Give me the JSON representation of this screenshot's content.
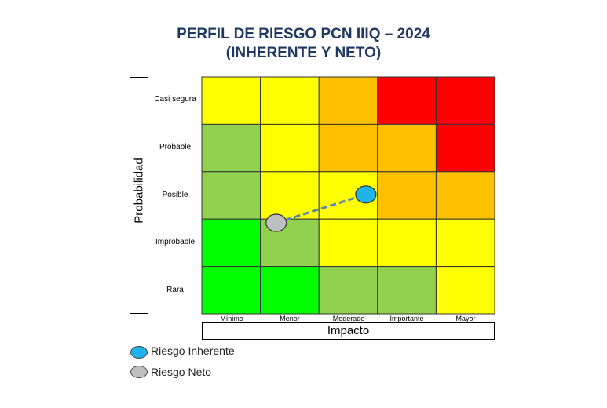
{
  "title_line1": "PERFIL DE RIESGO PCN IIIQ – 2024",
  "title_line2": "(INHERENTE Y NETO)",
  "chart_data": {
    "type": "heatmap",
    "ylabel": "Probabilidad",
    "xlabel": "Impacto",
    "rows": [
      "Casi segura",
      "Probable",
      "Posible",
      "Improbable",
      "Rara"
    ],
    "cols": [
      "Mínimo",
      "Menor",
      "Moderado",
      "Importante",
      "Mayor"
    ],
    "colors": {
      "Y": "#ffff00",
      "O": "#ffc000",
      "R": "#ff0000",
      "LG": "#92d050",
      "G": "#00ff00"
    },
    "grid": [
      [
        "Y",
        "Y",
        "O",
        "R",
        "R"
      ],
      [
        "LG",
        "Y",
        "O",
        "O",
        "R"
      ],
      [
        "LG",
        "Y",
        "Y",
        "O",
        "O"
      ],
      [
        "G",
        "LG",
        "Y",
        "Y",
        "Y"
      ],
      [
        "G",
        "G",
        "LG",
        "LG",
        "Y"
      ]
    ],
    "points": [
      {
        "name": "Riesgo Inherente",
        "impact": "Moderado",
        "probability": "Posible",
        "color": "#1fb3ea"
      },
      {
        "name": "Riesgo Neto",
        "impact": "Menor",
        "probability": "Improbable",
        "color": "#bfbfbf"
      }
    ],
    "connector_color": "#5b87a8"
  },
  "legend": [
    {
      "label": "Riesgo Inherente",
      "color": "#1fb3ea"
    },
    {
      "label": "Riesgo Neto",
      "color": "#bfbfbf"
    }
  ]
}
